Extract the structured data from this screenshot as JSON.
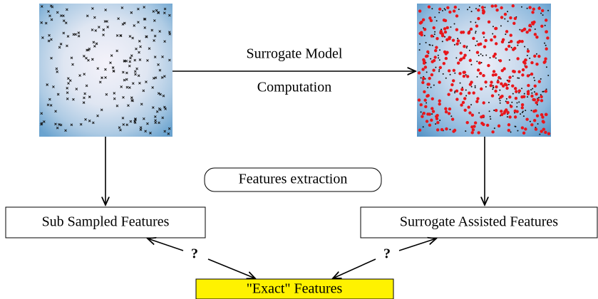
{
  "edge_label": {
    "top": "Surrogate Model",
    "bottom": "Computation"
  },
  "middle_label": "Features extraction",
  "nodes": [
    {
      "label": "Sub Sampled Features"
    },
    {
      "label": "Surrogate Assisted Features"
    },
    {
      "label": "\"Exact\" Features"
    }
  ],
  "questions": [
    "?",
    "?"
  ]
}
